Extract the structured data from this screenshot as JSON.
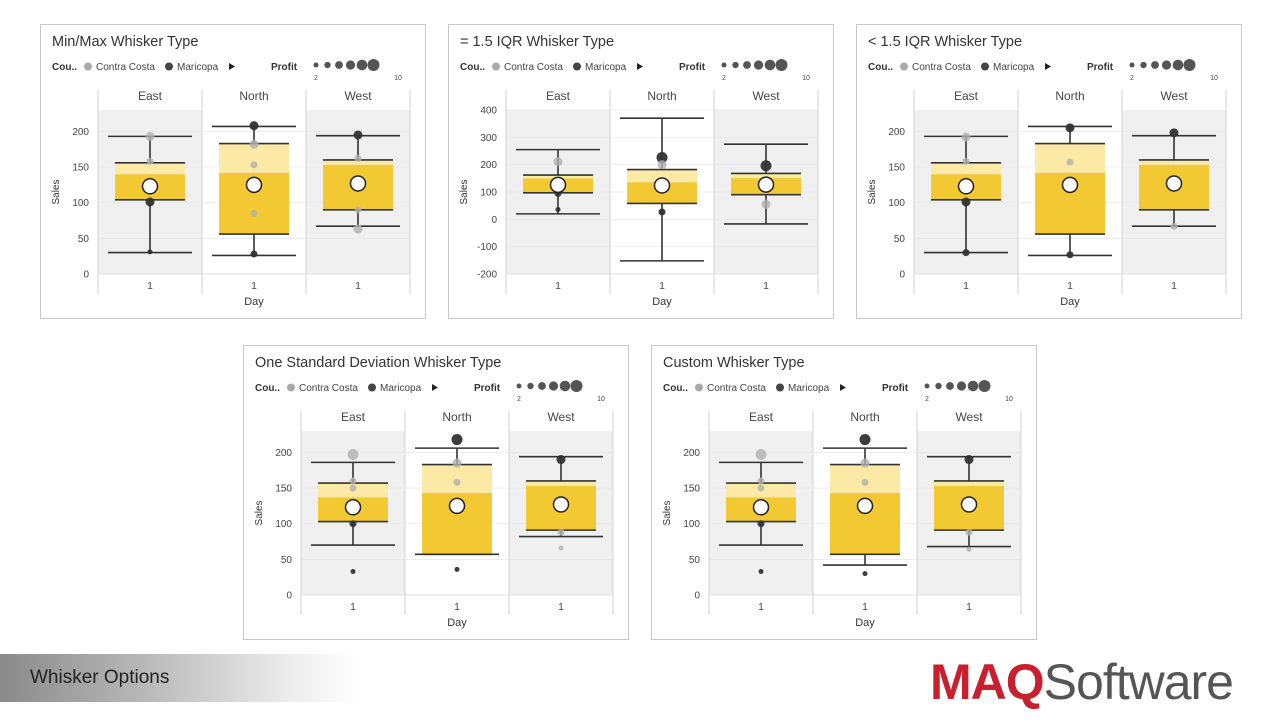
{
  "slide": {
    "footer_title": "Whisker Options",
    "brand_maq": "MAQ",
    "brand_software": "Software",
    "brand_color": "#c7202e"
  },
  "legend": {
    "field_label": "Cou..",
    "items": [
      {
        "label": "Contra Costa",
        "color": "#aaaaaa"
      },
      {
        "label": "Maricopa",
        "color": "#444444"
      }
    ],
    "more_icon": "triangle-right-icon",
    "size_label": "Profit",
    "size_min_label": "2",
    "size_max_label": "10"
  },
  "colors": {
    "box_dark": "#F2C933",
    "box_light": "#FBE9A5",
    "panel_alt": "#f0f0f0",
    "whisker": "#333333"
  },
  "chart_data": [
    {
      "type": "box",
      "title": "Min/Max Whisker Type",
      "xlabel": "Day",
      "ylabel": "Sales",
      "ylim": [
        0,
        230
      ],
      "yticks": [
        0,
        50,
        100,
        150,
        200
      ],
      "groups": [
        "East",
        "North",
        "West"
      ],
      "categories": [
        "1"
      ],
      "boxes": [
        {
          "group": "East",
          "whisker_low": 30,
          "q1": 104,
          "median": 140,
          "q3": 156,
          "whisker_high": 193,
          "mean": 123
        },
        {
          "group": "North",
          "whisker_low": 26,
          "q1": 56,
          "median": 142,
          "q3": 183,
          "whisker_high": 207,
          "mean": 125
        },
        {
          "group": "West",
          "whisker_low": 67,
          "q1": 90,
          "median": 153,
          "q3": 160,
          "whisker_high": 194,
          "mean": 127
        }
      ],
      "points": [
        {
          "group": "East",
          "value": 193,
          "series": "Contra Costa",
          "size": 4
        },
        {
          "group": "East",
          "value": 158,
          "series": "Contra Costa",
          "size": 3
        },
        {
          "group": "East",
          "value": 101,
          "series": "Maricopa",
          "size": 4
        },
        {
          "group": "East",
          "value": 31,
          "series": "Maricopa",
          "size": 2
        },
        {
          "group": "North",
          "value": 208,
          "series": "Maricopa",
          "size": 4
        },
        {
          "group": "North",
          "value": 182,
          "series": "Contra Costa",
          "size": 4
        },
        {
          "group": "North",
          "value": 153,
          "series": "Contra Costa",
          "size": 3
        },
        {
          "group": "North",
          "value": 85,
          "series": "Contra Costa",
          "size": 3
        },
        {
          "group": "North",
          "value": 28,
          "series": "Maricopa",
          "size": 3
        },
        {
          "group": "West",
          "value": 195,
          "series": "Maricopa",
          "size": 4
        },
        {
          "group": "West",
          "value": 162,
          "series": "Contra Costa",
          "size": 3
        },
        {
          "group": "West",
          "value": 90,
          "series": "Contra Costa",
          "size": 3
        },
        {
          "group": "West",
          "value": 63,
          "series": "Contra Costa",
          "size": 4
        }
      ]
    },
    {
      "type": "box",
      "title": "= 1.5 IQR Whisker Type",
      "xlabel": "Day",
      "ylabel": "Sales",
      "ylim": [
        -200,
        400
      ],
      "yticks": [
        -200,
        -100,
        0,
        100,
        200,
        300,
        400
      ],
      "groups": [
        "East",
        "North",
        "West"
      ],
      "categories": [
        "1"
      ],
      "boxes": [
        {
          "group": "East",
          "whisker_low": 20,
          "q1": 97,
          "median": 150,
          "q3": 162,
          "whisker_high": 255,
          "mean": 126
        },
        {
          "group": "North",
          "whisker_low": -152,
          "q1": 58,
          "median": 136,
          "q3": 182,
          "whisker_high": 370,
          "mean": 124
        },
        {
          "group": "West",
          "whisker_low": -17,
          "q1": 90,
          "median": 151,
          "q3": 168,
          "whisker_high": 275,
          "mean": 127
        }
      ],
      "points": [
        {
          "group": "East",
          "value": 211,
          "series": "Contra Costa",
          "size": 4
        },
        {
          "group": "East",
          "value": 95,
          "series": "Maricopa",
          "size": 3
        },
        {
          "group": "East",
          "value": 36,
          "series": "Maricopa",
          "size": 2
        },
        {
          "group": "North",
          "value": 226,
          "series": "Maricopa",
          "size": 5
        },
        {
          "group": "North",
          "value": 200,
          "series": "Contra Costa",
          "size": 4
        },
        {
          "group": "North",
          "value": 27,
          "series": "Maricopa",
          "size": 3
        },
        {
          "group": "West",
          "value": 196,
          "series": "Maricopa",
          "size": 5
        },
        {
          "group": "West",
          "value": 55,
          "series": "Contra Costa",
          "size": 4
        }
      ]
    },
    {
      "type": "box",
      "title": "< 1.5 IQR Whisker Type",
      "xlabel": "Day",
      "ylabel": "Sales",
      "ylim": [
        0,
        230
      ],
      "yticks": [
        0,
        50,
        100,
        150,
        200
      ],
      "groups": [
        "East",
        "North",
        "West"
      ],
      "categories": [
        "1"
      ],
      "boxes": [
        {
          "group": "East",
          "whisker_low": 30,
          "q1": 104,
          "median": 140,
          "q3": 156,
          "whisker_high": 193,
          "mean": 123
        },
        {
          "group": "North",
          "whisker_low": 26,
          "q1": 56,
          "median": 142,
          "q3": 183,
          "whisker_high": 207,
          "mean": 125
        },
        {
          "group": "West",
          "whisker_low": 67,
          "q1": 90,
          "median": 153,
          "q3": 160,
          "whisker_high": 194,
          "mean": 127
        }
      ],
      "points": [
        {
          "group": "East",
          "value": 192,
          "series": "Contra Costa",
          "size": 4
        },
        {
          "group": "East",
          "value": 158,
          "series": "Contra Costa",
          "size": 3
        },
        {
          "group": "East",
          "value": 101,
          "series": "Maricopa",
          "size": 4
        },
        {
          "group": "East",
          "value": 30,
          "series": "Maricopa",
          "size": 3
        },
        {
          "group": "North",
          "value": 205,
          "series": "Maricopa",
          "size": 4
        },
        {
          "group": "North",
          "value": 157,
          "series": "Contra Costa",
          "size": 3
        },
        {
          "group": "North",
          "value": 27,
          "series": "Maricopa",
          "size": 3
        },
        {
          "group": "West",
          "value": 198,
          "series": "Maricopa",
          "size": 4
        },
        {
          "group": "West",
          "value": 67,
          "series": "Contra Costa",
          "size": 3
        }
      ]
    },
    {
      "type": "box",
      "title": "One Standard Deviation Whisker Type",
      "xlabel": "Day",
      "ylabel": "Sales",
      "ylim": [
        0,
        230
      ],
      "yticks": [
        0,
        50,
        100,
        150,
        200
      ],
      "groups": [
        "East",
        "North",
        "West"
      ],
      "categories": [
        "1"
      ],
      "boxes": [
        {
          "group": "East",
          "whisker_low": 70,
          "q1": 103,
          "median": 137,
          "q3": 157,
          "whisker_high": 186,
          "mean": 123
        },
        {
          "group": "North",
          "whisker_low": 57,
          "q1": 57,
          "median": 143,
          "q3": 183,
          "whisker_high": 206,
          "mean": 125
        },
        {
          "group": "West",
          "whisker_low": 82,
          "q1": 91,
          "median": 153,
          "q3": 160,
          "whisker_high": 194,
          "mean": 127
        }
      ],
      "points": [
        {
          "group": "East",
          "value": 197,
          "series": "Contra Costa",
          "size": 5
        },
        {
          "group": "East",
          "value": 160,
          "series": "Contra Costa",
          "size": 3
        },
        {
          "group": "East",
          "value": 150,
          "series": "Contra Costa",
          "size": 3
        },
        {
          "group": "East",
          "value": 100,
          "series": "Maricopa",
          "size": 3
        },
        {
          "group": "East",
          "value": 33,
          "series": "Maricopa",
          "size": 2
        },
        {
          "group": "North",
          "value": 218,
          "series": "Maricopa",
          "size": 5
        },
        {
          "group": "North",
          "value": 185,
          "series": "Contra Costa",
          "size": 4
        },
        {
          "group": "North",
          "value": 158,
          "series": "Contra Costa",
          "size": 3
        },
        {
          "group": "North",
          "value": 36,
          "series": "Maricopa",
          "size": 2
        },
        {
          "group": "West",
          "value": 190,
          "series": "Maricopa",
          "size": 4
        },
        {
          "group": "West",
          "value": 88,
          "series": "Contra Costa",
          "size": 3
        },
        {
          "group": "West",
          "value": 66,
          "series": "Contra Costa",
          "size": 2
        }
      ]
    },
    {
      "type": "box",
      "title": "Custom Whisker Type",
      "xlabel": "Day",
      "ylabel": "Sales",
      "ylim": [
        0,
        230
      ],
      "yticks": [
        0,
        50,
        100,
        150,
        200
      ],
      "groups": [
        "East",
        "North",
        "West"
      ],
      "categories": [
        "1"
      ],
      "boxes": [
        {
          "group": "East",
          "whisker_low": 70,
          "q1": 103,
          "median": 137,
          "q3": 157,
          "whisker_high": 186,
          "mean": 123
        },
        {
          "group": "North",
          "whisker_low": 42,
          "q1": 57,
          "median": 143,
          "q3": 183,
          "whisker_high": 206,
          "mean": 125
        },
        {
          "group": "West",
          "whisker_low": 68,
          "q1": 91,
          "median": 153,
          "q3": 160,
          "whisker_high": 194,
          "mean": 127
        }
      ],
      "points": [
        {
          "group": "East",
          "value": 197,
          "series": "Contra Costa",
          "size": 5
        },
        {
          "group": "East",
          "value": 160,
          "series": "Contra Costa",
          "size": 3
        },
        {
          "group": "East",
          "value": 150,
          "series": "Contra Costa",
          "size": 3
        },
        {
          "group": "East",
          "value": 100,
          "series": "Maricopa",
          "size": 3
        },
        {
          "group": "East",
          "value": 33,
          "series": "Maricopa",
          "size": 2
        },
        {
          "group": "North",
          "value": 218,
          "series": "Maricopa",
          "size": 5
        },
        {
          "group": "North",
          "value": 185,
          "series": "Contra Costa",
          "size": 4
        },
        {
          "group": "North",
          "value": 158,
          "series": "Contra Costa",
          "size": 3
        },
        {
          "group": "North",
          "value": 30,
          "series": "Maricopa",
          "size": 2
        },
        {
          "group": "West",
          "value": 190,
          "series": "Maricopa",
          "size": 4
        },
        {
          "group": "West",
          "value": 88,
          "series": "Contra Costa",
          "size": 3
        },
        {
          "group": "West",
          "value": 64,
          "series": "Contra Costa",
          "size": 2
        }
      ]
    }
  ]
}
